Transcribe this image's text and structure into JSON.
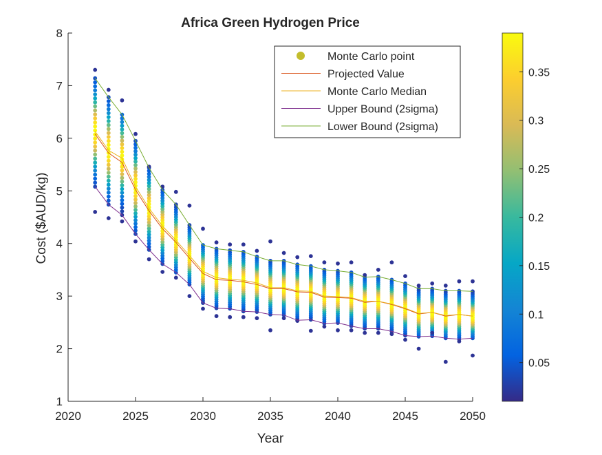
{
  "chart_data": {
    "type": "scatter",
    "title": "Africa Green Hydrogen Price",
    "xlabel": "Year",
    "ylabel": "Cost ($AUD/kg)",
    "xlim": [
      2020,
      2050
    ],
    "ylim": [
      1,
      8
    ],
    "x_ticks": [
      "2020",
      "2025",
      "2030",
      "2035",
      "2040",
      "2045",
      "2050"
    ],
    "y_ticks": [
      "1",
      "2",
      "3",
      "4",
      "5",
      "6",
      "7",
      "8"
    ],
    "grid": false,
    "legend_position": "top-right",
    "legend": [
      {
        "label": "Monte Carlo point",
        "marker": "dot",
        "color": "#c3bd2c"
      },
      {
        "label": "Projected Value",
        "marker": "line",
        "color": "#d95319"
      },
      {
        "label": "Monte Carlo Median",
        "marker": "line",
        "color": "#edb120"
      },
      {
        "label": "Upper Bound (2sigma)",
        "marker": "line",
        "color": "#7e2f8e"
      },
      {
        "label": "Lower Bound (2sigma)",
        "marker": "line",
        "color": "#77ac30"
      }
    ],
    "colorbar": {
      "colormap": "parula",
      "range": [
        0.01,
        0.39
      ],
      "ticks": [
        "0.05",
        "0.1",
        "0.15",
        "0.2",
        "0.25",
        "0.3",
        "0.35"
      ],
      "tick_values": [
        0.05,
        0.1,
        0.15,
        0.2,
        0.25,
        0.3,
        0.35
      ]
    },
    "years": [
      2022,
      2023,
      2024,
      2025,
      2026,
      2027,
      2028,
      2029,
      2030,
      2031,
      2032,
      2033,
      2034,
      2035,
      2036,
      2037,
      2038,
      2039,
      2040,
      2041,
      2042,
      2043,
      2044,
      2045,
      2046,
      2047,
      2048,
      2049,
      2050
    ],
    "series": [
      {
        "name": "Projected Value",
        "values": [
          6.08,
          5.72,
          5.54,
          5.02,
          4.62,
          4.28,
          4.02,
          3.72,
          3.43,
          3.31,
          3.3,
          3.27,
          3.22,
          3.14,
          3.14,
          3.08,
          3.07,
          2.98,
          2.97,
          2.96,
          2.88,
          2.9,
          2.84,
          2.76,
          2.66,
          2.69,
          2.62,
          2.65,
          2.62
        ]
      },
      {
        "name": "Monte Carlo Median",
        "values": [
          6.13,
          5.77,
          5.62,
          5.08,
          4.67,
          4.33,
          4.06,
          3.77,
          3.47,
          3.35,
          3.32,
          3.3,
          3.25,
          3.16,
          3.16,
          3.1,
          3.09,
          3.0,
          2.99,
          2.97,
          2.9,
          2.9,
          2.85,
          2.77,
          2.67,
          2.69,
          2.63,
          2.65,
          2.62
        ]
      },
      {
        "name": "Upper Bound (2sigma)",
        "values": [
          5.08,
          4.74,
          4.54,
          4.18,
          3.88,
          3.61,
          3.45,
          3.22,
          2.87,
          2.77,
          2.76,
          2.71,
          2.7,
          2.65,
          2.64,
          2.54,
          2.55,
          2.48,
          2.49,
          2.43,
          2.38,
          2.38,
          2.33,
          2.25,
          2.23,
          2.24,
          2.2,
          2.18,
          2.2
        ]
      },
      {
        "name": "Lower Bound (2sigma)",
        "values": [
          7.14,
          6.78,
          6.45,
          5.95,
          5.44,
          5.02,
          4.74,
          4.35,
          3.97,
          3.9,
          3.87,
          3.84,
          3.75,
          3.67,
          3.67,
          3.6,
          3.57,
          3.5,
          3.48,
          3.45,
          3.36,
          3.37,
          3.31,
          3.24,
          3.14,
          3.14,
          3.1,
          3.1,
          3.09
        ]
      }
    ],
    "monte_carlo_points": {
      "outlier_low": [
        4.6,
        4.48,
        4.42,
        4.04,
        3.7,
        3.46,
        3.35,
        3.0,
        2.76,
        2.62,
        2.6,
        2.6,
        2.58,
        2.35,
        2.58,
        2.53,
        2.34,
        2.42,
        2.35,
        2.35,
        2.3,
        2.3,
        2.28,
        2.17,
        2.0,
        2.3,
        1.75,
        2.14,
        1.87
      ],
      "outlier_high": [
        7.3,
        6.92,
        6.72,
        6.08,
        5.46,
        5.08,
        4.98,
        4.72,
        4.28,
        4.02,
        3.98,
        3.98,
        3.86,
        4.04,
        3.82,
        3.74,
        3.76,
        3.64,
        3.62,
        3.64,
        3.4,
        3.5,
        3.64,
        3.38,
        3.2,
        3.24,
        3.2,
        3.28,
        3.28
      ]
    }
  }
}
